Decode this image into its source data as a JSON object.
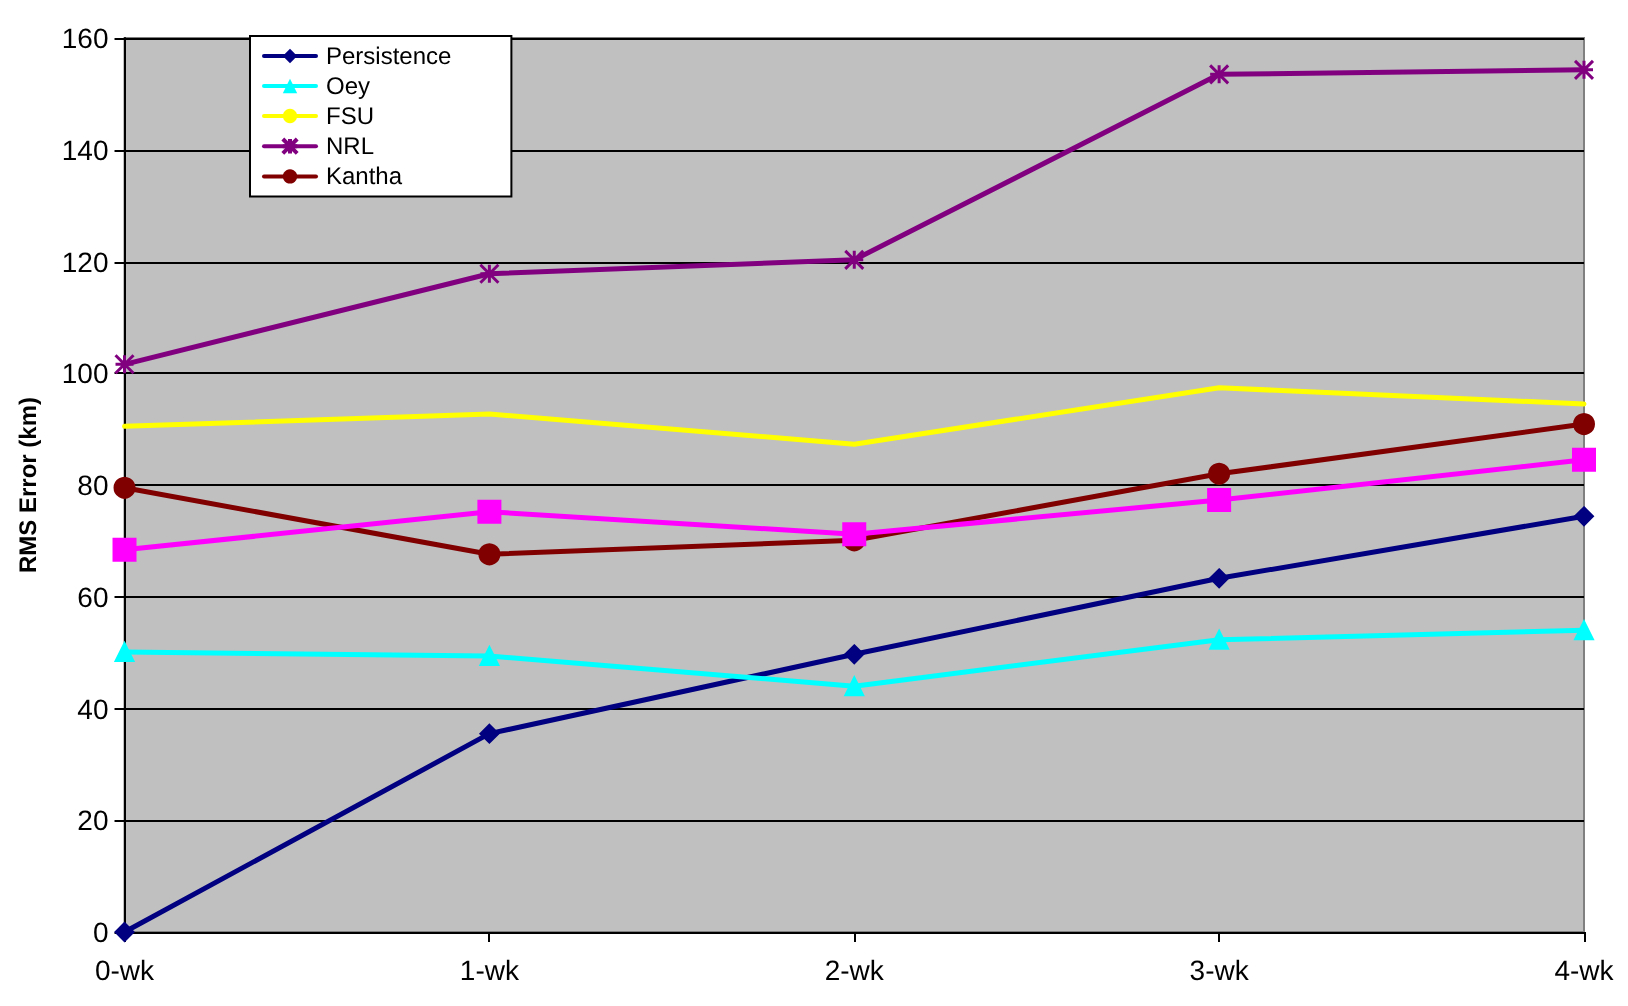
{
  "chart_data": {
    "type": "line",
    "ylabel": "RMS Error (km)",
    "categories": [
      "0-wk",
      "1-wk",
      "2-wk",
      "3-wk",
      "4-wk"
    ],
    "ylim": [
      0,
      160
    ],
    "yticks": [
      0,
      20,
      40,
      60,
      80,
      100,
      120,
      140,
      160
    ],
    "grid": "y",
    "legend": "top left",
    "line_style": "solid",
    "series": [
      {
        "name": "Persistence",
        "color": "#000080",
        "marker": "diamond",
        "values": [
          0,
          35.5,
          49.7,
          63.3,
          74.4
        ]
      },
      {
        "color": "#ff00ff",
        "marker": "square",
        "values": [
          68.4,
          75.2,
          71.2,
          77.3,
          84.5
        ]
      },
      {
        "name": "Oey",
        "color": "#00ffff",
        "marker": "triangle",
        "values": [
          50.1,
          49.4,
          44,
          52.3,
          54
        ]
      },
      {
        "name": "FSU",
        "color": "#ffff00",
        "marker": "none",
        "values": [
          90.5,
          92.7,
          87.3,
          97.4,
          94.5
        ]
      },
      {
        "name": "NRL",
        "color": "#800080",
        "marker": "cross",
        "values": [
          101.6,
          117.8,
          120.3,
          153.5,
          154.3
        ]
      },
      {
        "name": "Kantha",
        "color": "#800000",
        "marker": "circle",
        "values": [
          79.5,
          67.6,
          70.1,
          82,
          90.9
        ]
      }
    ]
  }
}
